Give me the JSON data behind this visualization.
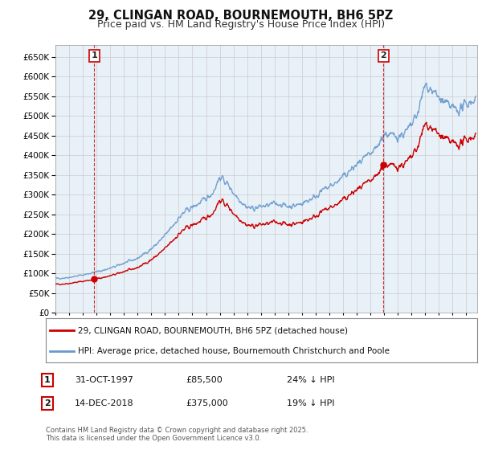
{
  "title": "29, CLINGAN ROAD, BOURNEMOUTH, BH6 5PZ",
  "subtitle": "Price paid vs. HM Land Registry's House Price Index (HPI)",
  "ylim": [
    0,
    680000
  ],
  "yticks": [
    0,
    50000,
    100000,
    150000,
    200000,
    250000,
    300000,
    350000,
    400000,
    450000,
    500000,
    550000,
    600000,
    650000
  ],
  "xlim_start": 1995.0,
  "xlim_end": 2025.8,
  "sale1_date": 1997.83,
  "sale1_price": 85500,
  "sale1_label": "1",
  "sale2_date": 2018.95,
  "sale2_price": 375000,
  "sale2_label": "2",
  "red_color": "#cc0000",
  "blue_color": "#6699cc",
  "plot_bg_color": "#e8f0f8",
  "legend1": "29, CLINGAN ROAD, BOURNEMOUTH, BH6 5PZ (detached house)",
  "legend2": "HPI: Average price, detached house, Bournemouth Christchurch and Poole",
  "annotation1_date": "31-OCT-1997",
  "annotation1_price": "£85,500",
  "annotation1_hpi": "24% ↓ HPI",
  "annotation2_date": "14-DEC-2018",
  "annotation2_price": "£375,000",
  "annotation2_hpi": "19% ↓ HPI",
  "footer": "Contains HM Land Registry data © Crown copyright and database right 2025.\nThis data is licensed under the Open Government Licence v3.0.",
  "background_color": "#ffffff",
  "grid_color": "#cccccc",
  "title_fontsize": 10.5,
  "subtitle_fontsize": 9
}
